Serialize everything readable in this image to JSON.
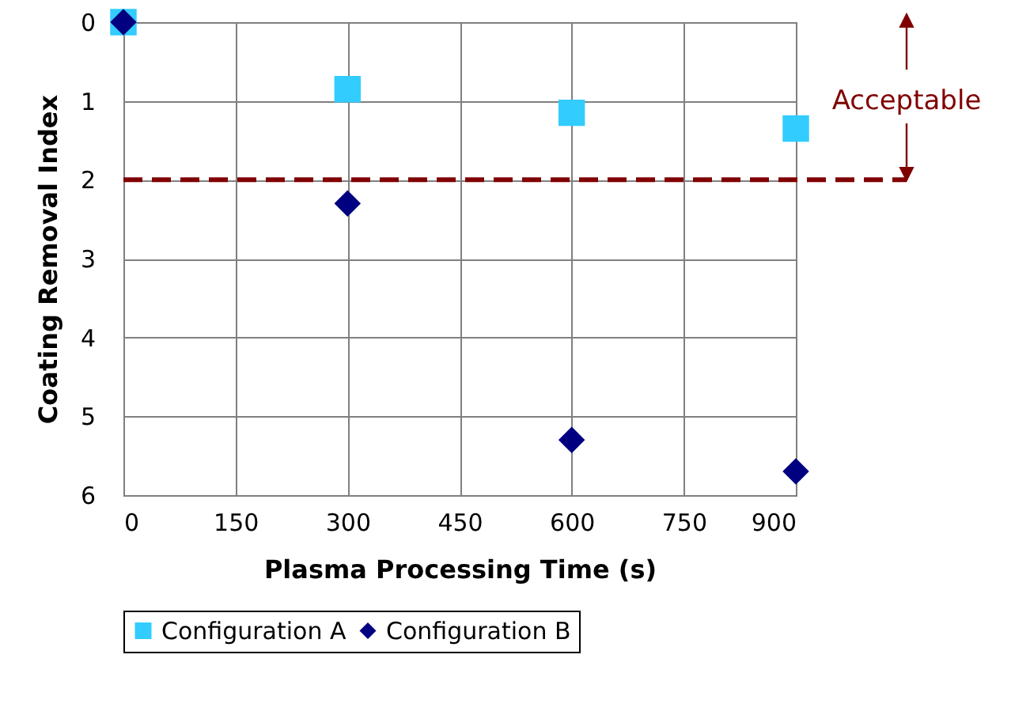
{
  "chart_data": {
    "type": "scatter",
    "xlabel": "Plasma Processing Time (s)",
    "ylabel": "Coating Removal Index",
    "xlim": [
      0,
      900
    ],
    "xticks": [
      0,
      150,
      300,
      450,
      600,
      750,
      900
    ],
    "ylim": [
      6,
      0
    ],
    "yticks": [
      0,
      1,
      2,
      3,
      4,
      5,
      6
    ],
    "grid": true,
    "legend": "bottom",
    "series": [
      {
        "name": "Configuration A",
        "color": "#33ccff",
        "marker": "square",
        "x": [
          0,
          300,
          600,
          900
        ],
        "values": [
          0,
          0.85,
          1.15,
          1.35
        ]
      },
      {
        "name": "Configuration B",
        "color": "#000080",
        "marker": "diamond",
        "x": [
          0,
          300,
          600,
          900
        ],
        "values": [
          0,
          2.3,
          5.3,
          5.7
        ]
      }
    ],
    "ref_lines": [
      {
        "axis": "y",
        "value": 2,
        "label": "Acceptable",
        "color": "#800000",
        "line_style": "dashed"
      }
    ]
  }
}
